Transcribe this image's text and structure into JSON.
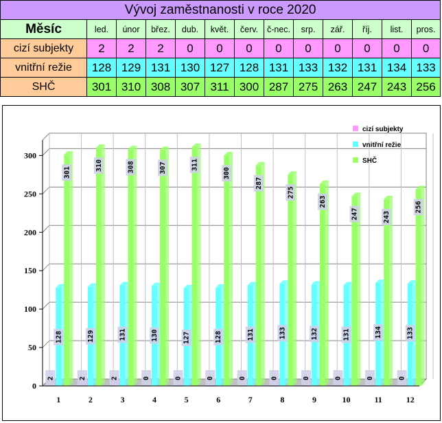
{
  "table": {
    "title": "Vývoj zaměstnanosti v roce 2020",
    "month_header": "Měsíc",
    "months": [
      "led.",
      "únor",
      "břez.",
      "dub.",
      "květ.",
      "červ.",
      "č-nec.",
      "srp.",
      "zář.",
      "říj.",
      "list.",
      "pros."
    ],
    "rows": [
      {
        "label": "cizí subjekty",
        "values": [
          2,
          2,
          2,
          0,
          0,
          0,
          0,
          0,
          0,
          0,
          0,
          0
        ]
      },
      {
        "label": "vnitřní režie",
        "values": [
          128,
          129,
          131,
          130,
          127,
          128,
          131,
          133,
          132,
          131,
          134,
          133
        ]
      },
      {
        "label": "SHČ",
        "values": [
          301,
          310,
          308,
          307,
          311,
          300,
          287,
          275,
          263,
          247,
          243,
          256
        ]
      }
    ]
  },
  "chart_data": {
    "type": "bar",
    "categories": [
      "1",
      "2",
      "3",
      "4",
      "5",
      "6",
      "7",
      "8",
      "9",
      "10",
      "11",
      "12"
    ],
    "series": [
      {
        "name": "cizí subjekty",
        "color": "#ff99ff",
        "values": [
          2,
          2,
          2,
          0,
          0,
          0,
          0,
          0,
          0,
          0,
          0,
          0
        ]
      },
      {
        "name": "vnitřní režie",
        "color": "#66ffff",
        "values": [
          128,
          129,
          131,
          130,
          127,
          128,
          131,
          133,
          132,
          131,
          134,
          133
        ]
      },
      {
        "name": "SHČ",
        "color": "#99ff66",
        "values": [
          301,
          310,
          308,
          307,
          311,
          300,
          287,
          275,
          263,
          247,
          243,
          256
        ]
      }
    ],
    "yticks": [
      0,
      50,
      100,
      150,
      200,
      250,
      300
    ],
    "ylim": [
      0,
      320
    ],
    "grid": true,
    "legend": "top-right",
    "data_labels": true
  }
}
